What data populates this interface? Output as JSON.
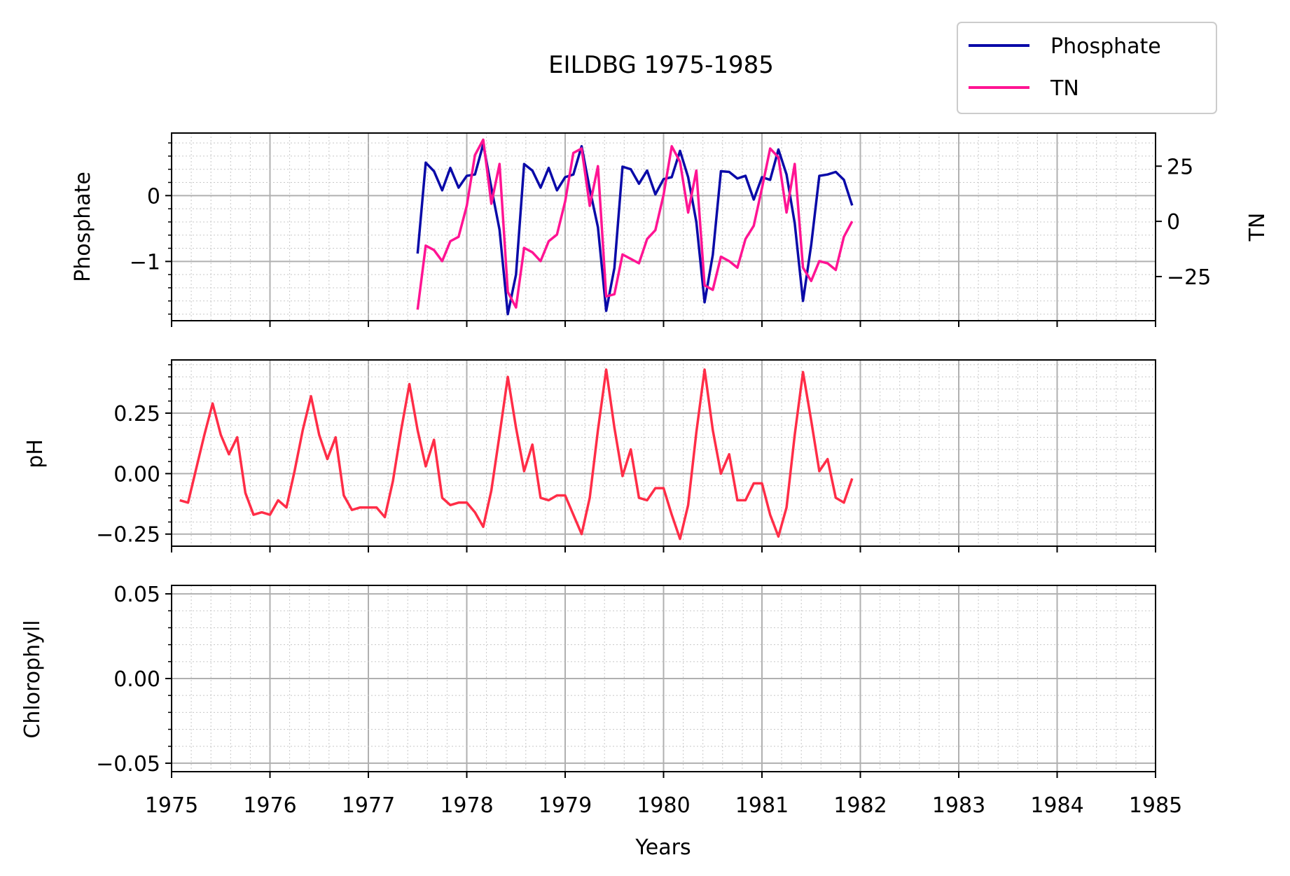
{
  "title": "EILDBG 1975-1985",
  "colors": {
    "phosphate": "#0a0aa8",
    "tn": "#ff1493",
    "ph": "#ff2d47",
    "major_grid": "#b0b0b0",
    "minor_grid": "#c8c8c8",
    "axis": "#000000"
  },
  "legend": {
    "placement": "top-right",
    "entries": [
      {
        "label": "Phosphate",
        "series": "phosphate"
      },
      {
        "label": "TN",
        "series": "tn"
      }
    ]
  },
  "x_axis": {
    "label": "Years",
    "range": [
      1975,
      1985
    ],
    "ticks": [
      "1975",
      "1976",
      "1977",
      "1978",
      "1979",
      "1980",
      "1981",
      "1982",
      "1983",
      "1984",
      "1985"
    ]
  },
  "chart_data": [
    {
      "type": "line",
      "panel": "phosphate-tn",
      "grid": true,
      "ylabel": "Phosphate",
      "ylim": [
        -1.9,
        0.95
      ],
      "yticks": [
        "0",
        "−1"
      ],
      "y2label": "TN",
      "y2lim": [
        -45,
        40
      ],
      "y2ticks": [
        "25",
        "0",
        "−25"
      ],
      "series": [
        {
          "name": "Phosphate",
          "axis": "left",
          "x": [
            1977.5,
            1977.583,
            1977.667,
            1977.75,
            1977.833,
            1977.917,
            1978.0,
            1978.083,
            1978.167,
            1978.25,
            1978.333,
            1978.417,
            1978.5,
            1978.583,
            1978.667,
            1978.75,
            1978.833,
            1978.917,
            1979.0,
            1979.083,
            1979.167,
            1979.25,
            1979.333,
            1979.417,
            1979.5,
            1979.583,
            1979.667,
            1979.75,
            1979.833,
            1979.917,
            1980.0,
            1980.083,
            1980.167,
            1980.25,
            1980.333,
            1980.417,
            1980.5,
            1980.583,
            1980.667,
            1980.75,
            1980.833,
            1980.917,
            1981.0,
            1981.083,
            1981.167,
            1981.25,
            1981.333,
            1981.417,
            1981.5,
            1981.583,
            1981.667,
            1981.75,
            1981.833,
            1981.917
          ],
          "y": [
            -0.88,
            0.5,
            0.37,
            0.08,
            0.42,
            0.12,
            0.3,
            0.32,
            0.78,
            0.12,
            -0.52,
            -1.8,
            -1.2,
            0.48,
            0.38,
            0.12,
            0.42,
            0.08,
            0.28,
            0.32,
            0.75,
            0.1,
            -0.48,
            -1.75,
            -1.1,
            0.44,
            0.4,
            0.18,
            0.38,
            0.02,
            0.25,
            0.28,
            0.68,
            0.28,
            -0.4,
            -1.62,
            -0.9,
            0.37,
            0.36,
            0.26,
            0.3,
            -0.06,
            0.28,
            0.24,
            0.7,
            0.32,
            -0.42,
            -1.6,
            -0.75,
            0.3,
            0.32,
            0.36,
            0.24,
            -0.15
          ]
        },
        {
          "name": "TN",
          "axis": "right",
          "x": [
            1977.5,
            1977.583,
            1977.667,
            1977.75,
            1977.833,
            1977.917,
            1978.0,
            1978.083,
            1978.167,
            1978.25,
            1978.333,
            1978.417,
            1978.5,
            1978.583,
            1978.667,
            1978.75,
            1978.833,
            1978.917,
            1979.0,
            1979.083,
            1979.167,
            1979.25,
            1979.333,
            1979.417,
            1979.5,
            1979.583,
            1979.667,
            1979.75,
            1979.833,
            1979.917,
            1980.0,
            1980.083,
            1980.167,
            1980.25,
            1980.333,
            1980.417,
            1980.5,
            1980.583,
            1980.667,
            1980.75,
            1980.833,
            1980.917,
            1981.0,
            1981.083,
            1981.167,
            1981.25,
            1981.333,
            1981.417,
            1981.5,
            1981.583,
            1981.667,
            1981.75,
            1981.833,
            1981.917
          ],
          "y": [
            -40,
            -11,
            -13,
            -18,
            -9,
            -7,
            7,
            30,
            37,
            8,
            26,
            -32,
            -39,
            -12,
            -14,
            -18,
            -9,
            -6,
            9,
            31,
            33,
            7,
            25,
            -34,
            -33,
            -15,
            -17,
            -19,
            -8,
            -4,
            12,
            34,
            27,
            4,
            23,
            -29,
            -31,
            -16,
            -18,
            -21,
            -8,
            -2,
            15,
            33,
            29,
            4,
            26,
            -21,
            -27,
            -18,
            -19,
            -22,
            -7,
            0
          ]
        }
      ]
    },
    {
      "type": "line",
      "panel": "ph",
      "grid": true,
      "ylabel": "pH",
      "ylim": [
        -0.3,
        0.47
      ],
      "yticks": [
        "0.25",
        "0.00",
        "−0.25"
      ],
      "series": [
        {
          "name": "pH",
          "x": [
            1975.083,
            1975.167,
            1975.25,
            1975.333,
            1975.417,
            1975.5,
            1975.583,
            1975.667,
            1975.75,
            1975.833,
            1975.917,
            1976.0,
            1976.083,
            1976.167,
            1976.25,
            1976.333,
            1976.417,
            1976.5,
            1976.583,
            1976.667,
            1976.75,
            1976.833,
            1976.917,
            1977.0,
            1977.083,
            1977.167,
            1977.25,
            1977.333,
            1977.417,
            1977.5,
            1977.583,
            1977.667,
            1977.75,
            1977.833,
            1977.917,
            1978.0,
            1978.083,
            1978.167,
            1978.25,
            1978.333,
            1978.417,
            1978.5,
            1978.583,
            1978.667,
            1978.75,
            1978.833,
            1978.917,
            1979.0,
            1979.083,
            1979.167,
            1979.25,
            1979.333,
            1979.417,
            1979.5,
            1979.583,
            1979.667,
            1979.75,
            1979.833,
            1979.917,
            1980.0,
            1980.083,
            1980.167,
            1980.25,
            1980.333,
            1980.417,
            1980.5,
            1980.583,
            1980.667,
            1980.75,
            1980.833,
            1980.917,
            1981.0,
            1981.083,
            1981.167,
            1981.25,
            1981.333,
            1981.417,
            1981.5,
            1981.583,
            1981.667,
            1981.75,
            1981.833,
            1981.917
          ],
          "y": [
            -0.11,
            -0.12,
            0.02,
            0.16,
            0.29,
            0.16,
            0.08,
            0.15,
            -0.08,
            -0.17,
            -0.16,
            -0.17,
            -0.11,
            -0.14,
            0.01,
            0.18,
            0.32,
            0.16,
            0.06,
            0.15,
            -0.09,
            -0.15,
            -0.14,
            -0.14,
            -0.14,
            -0.18,
            -0.03,
            0.18,
            0.37,
            0.18,
            0.03,
            0.14,
            -0.1,
            -0.13,
            -0.12,
            -0.12,
            -0.16,
            -0.22,
            -0.07,
            0.16,
            0.4,
            0.19,
            0.01,
            0.12,
            -0.1,
            -0.11,
            -0.09,
            -0.09,
            -0.17,
            -0.25,
            -0.1,
            0.18,
            0.43,
            0.19,
            -0.01,
            0.1,
            -0.1,
            -0.11,
            -0.06,
            -0.06,
            -0.17,
            -0.27,
            -0.13,
            0.17,
            0.43,
            0.18,
            0.0,
            0.08,
            -0.11,
            -0.11,
            -0.04,
            -0.04,
            -0.17,
            -0.26,
            -0.14,
            0.16,
            0.42,
            0.22,
            0.01,
            0.06,
            -0.1,
            -0.12,
            -0.02
          ]
        }
      ]
    },
    {
      "type": "line",
      "panel": "chlorophyll",
      "grid": true,
      "ylabel": "Chlorophyll",
      "ylim": [
        -0.055,
        0.055
      ],
      "yticks": [
        "0.05",
        "0.00",
        "−0.05"
      ],
      "series": []
    }
  ]
}
